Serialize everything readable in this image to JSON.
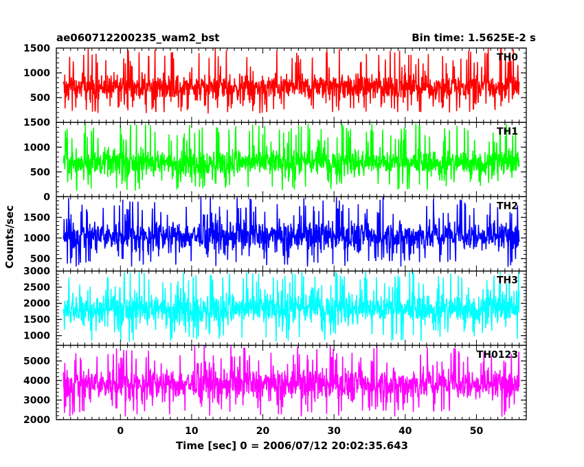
{
  "header": {
    "left": "ae060712200235_wam2_bst",
    "right": "Bin time: 1.5625E-2 s"
  },
  "chart_data": {
    "type": "line",
    "title": "ae060712200235_wam2_bst",
    "subtitle": "Bin time: 1.5625E-2 s",
    "xlabel": "Time [sec] 0 = 2006/07/12 20:02:35.643",
    "ylabel": "Counts/sec",
    "xlim": [
      -9,
      57
    ],
    "data_x_range": [
      -8,
      56
    ],
    "x_ticks": [
      0,
      10,
      20,
      30,
      40,
      50
    ],
    "x_tick_labels": [
      "0",
      "10",
      "20",
      "30",
      "40",
      "50"
    ],
    "grid": false,
    "legend": "none",
    "panels": [
      {
        "label": "TH0",
        "color": "#ff0000",
        "ylim": [
          0,
          1500
        ],
        "y_ticks": [
          500,
          1000,
          1500
        ],
        "y_tick_labels": [
          "500",
          "1000",
          "1500"
        ],
        "mean": 620,
        "typical_range": [
          180,
          1250
        ],
        "max": 1500
      },
      {
        "label": "TH1",
        "color": "#00ff00",
        "ylim": [
          0,
          1500
        ],
        "y_ticks": [
          0,
          500,
          1000,
          1500
        ],
        "y_tick_labels": [
          "0",
          "500",
          "1000",
          "1500"
        ],
        "mean": 600,
        "typical_range": [
          120,
          1250
        ],
        "max": 1480
      },
      {
        "label": "TH2",
        "color": "#0000ff",
        "ylim": [
          200,
          2000
        ],
        "y_ticks": [
          500,
          1000,
          1500
        ],
        "y_tick_labels": [
          "500",
          "1000",
          "1500"
        ],
        "mean": 980,
        "typical_range": [
          300,
          1800
        ],
        "max": 2000
      },
      {
        "label": "TH3",
        "color": "#00ffff",
        "ylim": [
          700,
          3000
        ],
        "y_ticks": [
          1000,
          1500,
          2000,
          2500,
          3000
        ],
        "y_tick_labels": [
          "1000",
          "1500",
          "2000",
          "2500",
          "3000"
        ],
        "mean": 1650,
        "typical_range": [
          800,
          2850
        ],
        "max": 3000
      },
      {
        "label": "TH0123",
        "color": "#ff00ff",
        "ylim": [
          2000,
          5800
        ],
        "y_ticks": [
          2000,
          3000,
          4000,
          5000
        ],
        "y_tick_labels": [
          "2000",
          "3000",
          "4000",
          "5000"
        ],
        "mean": 3650,
        "typical_range": [
          2150,
          5500
        ],
        "max": 5800
      }
    ]
  }
}
